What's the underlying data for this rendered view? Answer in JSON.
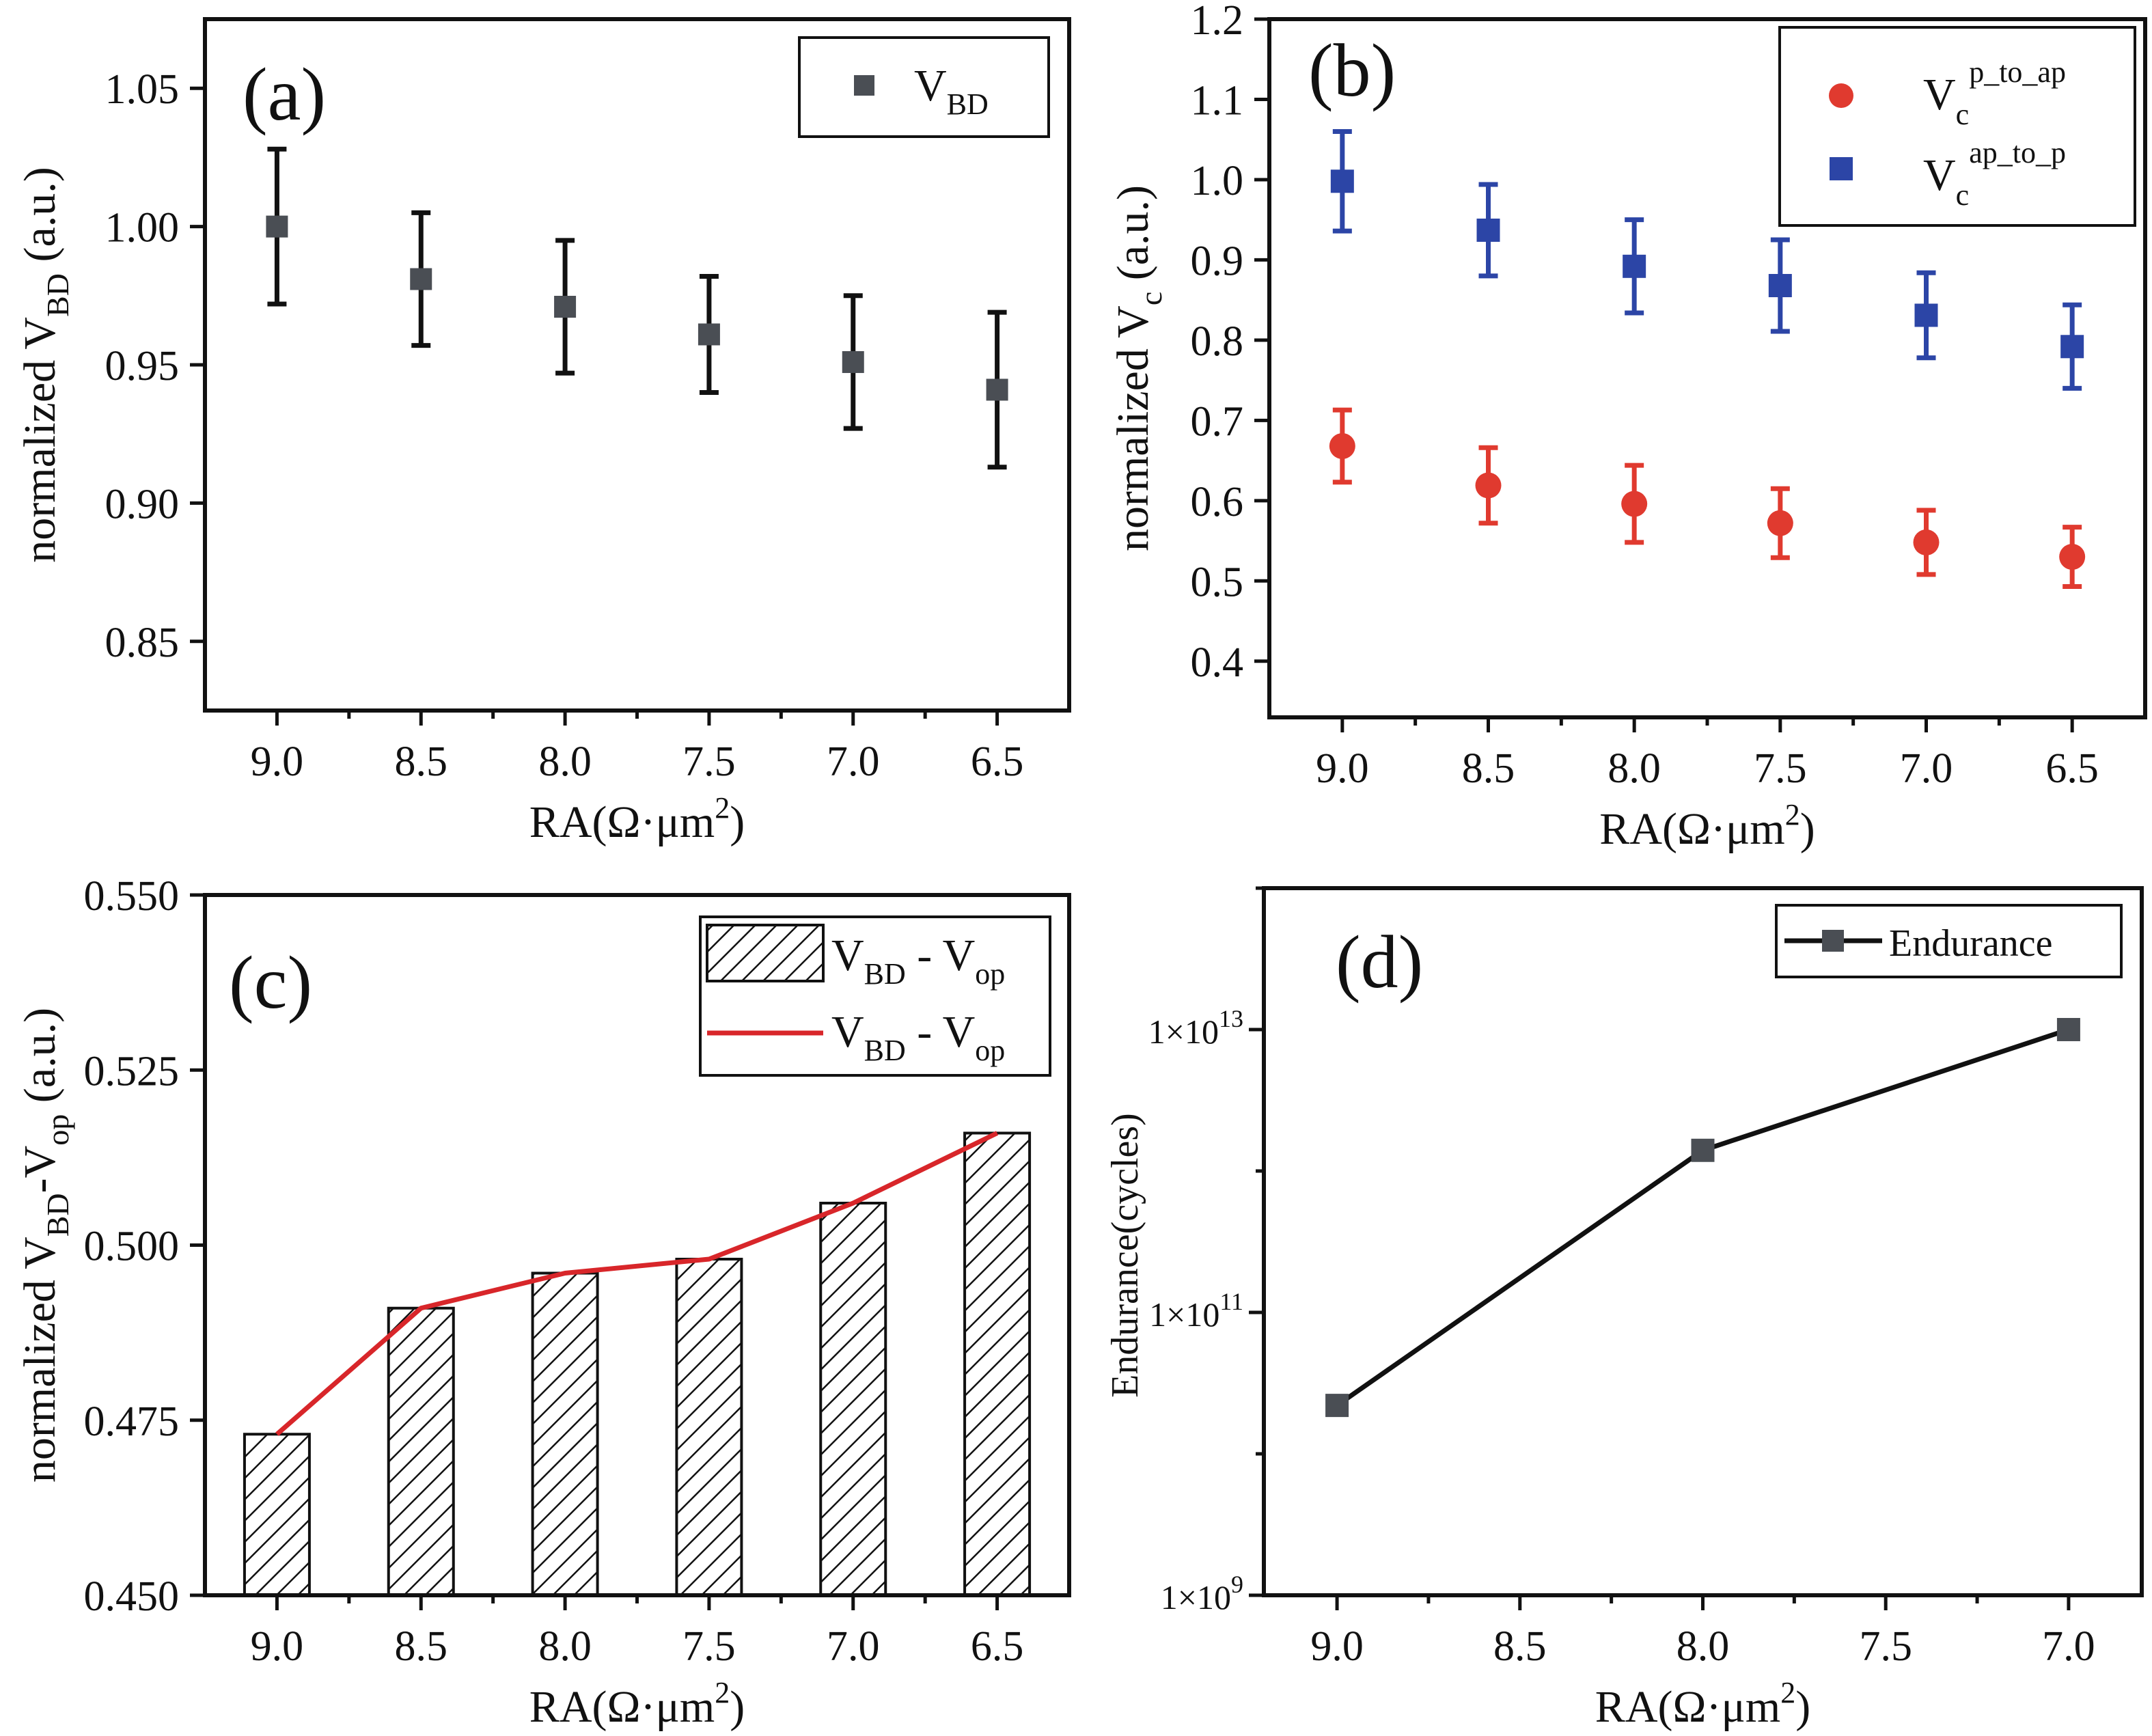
{
  "colors": {
    "axis": "#111111",
    "gray_marker": "#4a4e54",
    "red_marker": "#e03a2f",
    "blue_marker": "#2c45a6",
    "red_line": "#d8262a"
  },
  "chart_data": [
    {
      "id": "a",
      "type": "scatter",
      "panel_label": "(a)",
      "xlabel": "RA(Ω·μm²)",
      "ylabel": "normalized V_BD (a.u.)",
      "x_reversed": true,
      "xlim": [
        6.25,
        9.25
      ],
      "ylim": [
        0.825,
        1.075
      ],
      "xticks": [
        9.0,
        8.5,
        8.0,
        7.5,
        7.0,
        6.5
      ],
      "xtick_labels": [
        "9.0",
        "8.5",
        "8.0",
        "7.5",
        "7.0",
        "6.5"
      ],
      "yticks": [
        0.85,
        0.9,
        0.95,
        1.0,
        1.05
      ],
      "ytick_labels": [
        "0.85",
        "0.90",
        "0.95",
        "1.00",
        "1.05"
      ],
      "legend": {
        "position": "top-right",
        "entries": [
          {
            "text": "V",
            "sub": "BD",
            "marker": "square"
          }
        ]
      },
      "series": [
        {
          "name": "V_BD",
          "marker": "square",
          "x": [
            9.0,
            8.5,
            8.0,
            7.5,
            7.0,
            6.5
          ],
          "y": [
            1.0,
            0.981,
            0.971,
            0.961,
            0.951,
            0.941
          ],
          "err": [
            0.028,
            0.024,
            0.024,
            0.021,
            0.024,
            0.028
          ]
        }
      ]
    },
    {
      "id": "b",
      "type": "scatter",
      "panel_label": "(b)",
      "xlabel": "RA(Ω·μm²)",
      "ylabel": "normalized V_c (a.u.)",
      "x_reversed": true,
      "xlim": [
        6.25,
        9.25
      ],
      "ylim": [
        0.33,
        1.2
      ],
      "xticks": [
        9.0,
        8.5,
        8.0,
        7.5,
        7.0,
        6.5
      ],
      "xtick_labels": [
        "9.0",
        "8.5",
        "8.0",
        "7.5",
        "7.0",
        "6.5"
      ],
      "yticks": [
        0.4,
        0.5,
        0.6,
        0.7,
        0.8,
        0.9,
        1.0,
        1.1,
        1.2
      ],
      "ytick_labels": [
        "0.4",
        "0.5",
        "0.6",
        "0.7",
        "0.8",
        "0.9",
        "1.0",
        "1.1",
        "1.2"
      ],
      "legend": {
        "position": "top-right",
        "entries": [
          {
            "text": "V",
            "sub": "c",
            "sup": "p_to_ap",
            "marker": "circle"
          },
          {
            "text": "V",
            "sub": "c",
            "sup": "ap_to_p",
            "marker": "square"
          }
        ]
      },
      "series": [
        {
          "name": "Vc p_to_ap",
          "marker": "circle",
          "x": [
            9.0,
            8.5,
            8.0,
            7.5,
            7.0,
            6.5
          ],
          "y": [
            0.668,
            0.619,
            0.596,
            0.572,
            0.548,
            0.53
          ],
          "err": [
            0.045,
            0.047,
            0.048,
            0.043,
            0.04,
            0.037
          ]
        },
        {
          "name": "Vc ap_to_p",
          "marker": "square",
          "x": [
            9.0,
            8.5,
            8.0,
            7.5,
            7.0,
            6.5
          ],
          "y": [
            0.998,
            0.937,
            0.892,
            0.868,
            0.831,
            0.792
          ],
          "err": [
            0.062,
            0.057,
            0.058,
            0.057,
            0.053,
            0.052
          ]
        }
      ]
    },
    {
      "id": "c",
      "type": "bar",
      "panel_label": "(c)",
      "xlabel": "RA(Ω·μm²)",
      "ylabel": "normalized V_BD-V_op (a.u.)",
      "x_reversed": true,
      "xlim": [
        6.25,
        9.25
      ],
      "ylim": [
        0.45,
        0.55
      ],
      "xticks": [
        9.0,
        8.5,
        8.0,
        7.5,
        7.0,
        6.5
      ],
      "xtick_labels": [
        "9.0",
        "8.5",
        "8.0",
        "7.5",
        "7.0",
        "6.5"
      ],
      "yticks": [
        0.45,
        0.475,
        0.5,
        0.525,
        0.55
      ],
      "ytick_labels": [
        "0.450",
        "0.475",
        "0.500",
        "0.525",
        "0.550"
      ],
      "legend": {
        "position": "top-right",
        "entries": [
          {
            "text": "V",
            "sub": "BD",
            "rest": " - V",
            "sub2": "op",
            "marker": "hatch"
          },
          {
            "text": "V",
            "sub": "BD",
            "rest": " - V",
            "sub2": "op",
            "marker": "line"
          }
        ]
      },
      "categories": [
        "9.0",
        "8.5",
        "8.0",
        "7.5",
        "7.0",
        "6.5"
      ],
      "x": [
        9.0,
        8.5,
        8.0,
        7.5,
        7.0,
        6.5
      ],
      "values": [
        0.473,
        0.491,
        0.496,
        0.498,
        0.506,
        0.516
      ],
      "line_values": [
        0.473,
        0.491,
        0.496,
        0.498,
        0.506,
        0.516
      ]
    },
    {
      "id": "d",
      "type": "line",
      "panel_label": "(d)",
      "xlabel": "RA(Ω·μm²)",
      "ylabel": "Endurance(cycles)",
      "x_reversed": true,
      "xlim": [
        6.8,
        9.2
      ],
      "ylim_log10": [
        9,
        14
      ],
      "y_scale": "log",
      "xticks": [
        9.0,
        8.5,
        8.0,
        7.5,
        7.0
      ],
      "xtick_labels": [
        "9.0",
        "8.5",
        "8.0",
        "7.5",
        "7.0"
      ],
      "yticks_log10": [
        9,
        11,
        13
      ],
      "ytick_labels": [
        {
          "base": "1×10",
          "exp": "9"
        },
        {
          "base": "1×10",
          "exp": "11"
        },
        {
          "base": "1×10",
          "exp": "13"
        }
      ],
      "legend": {
        "position": "top-right",
        "entries": [
          {
            "text": "Endurance",
            "marker": "line-square"
          }
        ]
      },
      "series": [
        {
          "name": "Endurance",
          "x": [
            9.0,
            8.0,
            7.0
          ],
          "y": [
            22000000000.0,
            1400000000000.0,
            10000000000000.0
          ]
        }
      ]
    }
  ]
}
